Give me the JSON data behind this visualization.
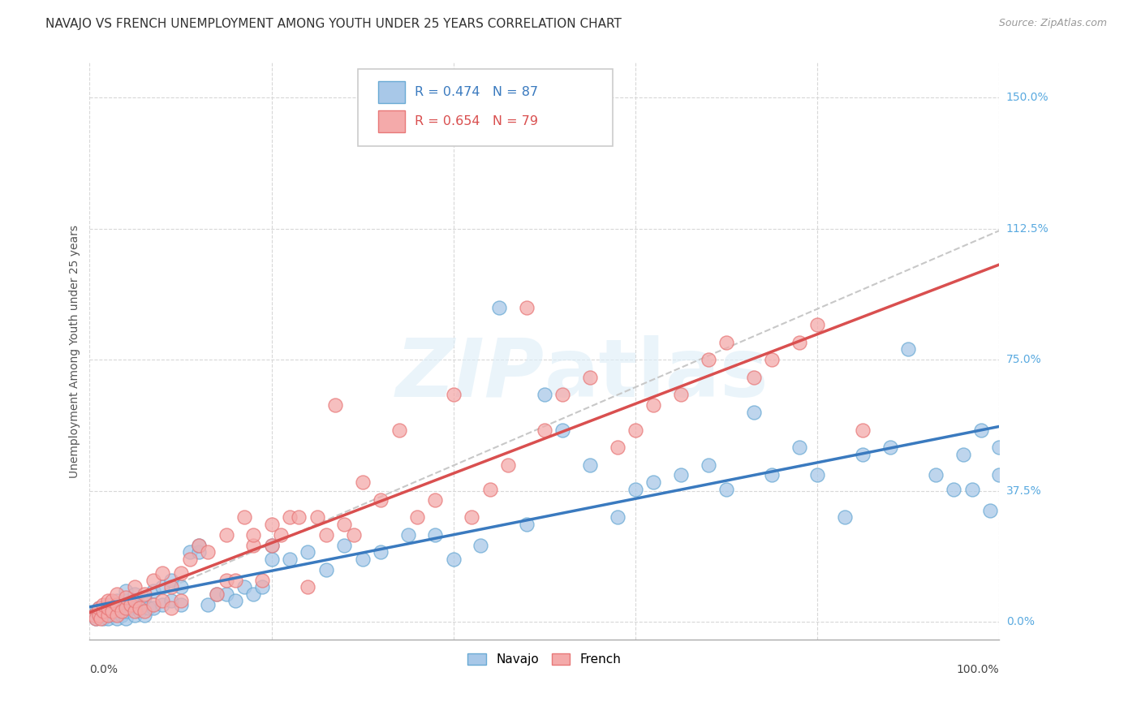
{
  "title": "NAVAJO VS FRENCH UNEMPLOYMENT AMONG YOUTH UNDER 25 YEARS CORRELATION CHART",
  "source": "Source: ZipAtlas.com",
  "ylabel": "Unemployment Among Youth under 25 years",
  "yticks": [
    0.0,
    0.375,
    0.75,
    1.125,
    1.5
  ],
  "ytick_labels": [
    "0.0%",
    "37.5%",
    "75.0%",
    "112.5%",
    "150.0%"
  ],
  "xlim": [
    0.0,
    1.0
  ],
  "ylim": [
    -0.05,
    1.6
  ],
  "navajo_color": "#a8c8e8",
  "navajo_edge_color": "#6aaad4",
  "navajo_line_color": "#3a7abf",
  "french_color": "#f4aaaa",
  "french_edge_color": "#e87878",
  "french_line_color": "#d94f4f",
  "dash_line_color": "#c8c8c8",
  "background_color": "#ffffff",
  "grid_color": "#d8d8d8",
  "tick_label_color": "#5aaae0",
  "navajo_x": [
    0.005,
    0.007,
    0.008,
    0.01,
    0.01,
    0.015,
    0.015,
    0.018,
    0.02,
    0.02,
    0.02,
    0.025,
    0.025,
    0.03,
    0.03,
    0.03,
    0.035,
    0.035,
    0.04,
    0.04,
    0.04,
    0.04,
    0.045,
    0.05,
    0.05,
    0.05,
    0.055,
    0.06,
    0.06,
    0.065,
    0.07,
    0.07,
    0.08,
    0.08,
    0.09,
    0.09,
    0.1,
    0.1,
    0.11,
    0.12,
    0.12,
    0.13,
    0.14,
    0.15,
    0.16,
    0.17,
    0.18,
    0.19,
    0.2,
    0.2,
    0.22,
    0.24,
    0.26,
    0.28,
    0.3,
    0.32,
    0.35,
    0.38,
    0.4,
    0.43,
    0.45,
    0.48,
    0.5,
    0.52,
    0.55,
    0.58,
    0.6,
    0.62,
    0.65,
    0.68,
    0.7,
    0.73,
    0.75,
    0.78,
    0.8,
    0.83,
    0.85,
    0.88,
    0.9,
    0.93,
    0.95,
    0.96,
    0.97,
    0.98,
    0.99,
    1.0,
    1.0
  ],
  "navajo_y": [
    0.02,
    0.01,
    0.03,
    0.02,
    0.04,
    0.01,
    0.03,
    0.02,
    0.01,
    0.03,
    0.05,
    0.02,
    0.04,
    0.01,
    0.03,
    0.06,
    0.02,
    0.05,
    0.01,
    0.03,
    0.06,
    0.09,
    0.04,
    0.02,
    0.05,
    0.08,
    0.03,
    0.02,
    0.07,
    0.04,
    0.04,
    0.09,
    0.05,
    0.1,
    0.06,
    0.12,
    0.05,
    0.1,
    0.2,
    0.2,
    0.22,
    0.05,
    0.08,
    0.08,
    0.06,
    0.1,
    0.08,
    0.1,
    0.18,
    0.22,
    0.18,
    0.2,
    0.15,
    0.22,
    0.18,
    0.2,
    0.25,
    0.25,
    0.18,
    0.22,
    0.9,
    0.28,
    0.65,
    0.55,
    0.45,
    0.3,
    0.38,
    0.4,
    0.42,
    0.45,
    0.38,
    0.6,
    0.42,
    0.5,
    0.42,
    0.3,
    0.48,
    0.5,
    0.78,
    0.42,
    0.38,
    0.48,
    0.38,
    0.55,
    0.32,
    0.5,
    0.42
  ],
  "french_x": [
    0.005,
    0.007,
    0.01,
    0.01,
    0.012,
    0.015,
    0.015,
    0.02,
    0.02,
    0.02,
    0.025,
    0.025,
    0.03,
    0.03,
    0.03,
    0.035,
    0.04,
    0.04,
    0.045,
    0.05,
    0.05,
    0.05,
    0.055,
    0.06,
    0.06,
    0.07,
    0.07,
    0.08,
    0.08,
    0.09,
    0.09,
    0.1,
    0.1,
    0.11,
    0.12,
    0.13,
    0.14,
    0.15,
    0.15,
    0.16,
    0.17,
    0.18,
    0.18,
    0.19,
    0.2,
    0.2,
    0.21,
    0.22,
    0.23,
    0.24,
    0.25,
    0.26,
    0.27,
    0.28,
    0.29,
    0.3,
    0.32,
    0.34,
    0.36,
    0.38,
    0.4,
    0.42,
    0.44,
    0.46,
    0.48,
    0.5,
    0.52,
    0.55,
    0.58,
    0.6,
    0.62,
    0.65,
    0.68,
    0.7,
    0.73,
    0.75,
    0.78,
    0.8,
    0.85
  ],
  "french_y": [
    0.02,
    0.01,
    0.02,
    0.04,
    0.01,
    0.03,
    0.05,
    0.02,
    0.04,
    0.06,
    0.03,
    0.06,
    0.02,
    0.05,
    0.08,
    0.03,
    0.04,
    0.07,
    0.05,
    0.03,
    0.06,
    0.1,
    0.04,
    0.03,
    0.08,
    0.05,
    0.12,
    0.06,
    0.14,
    0.04,
    0.1,
    0.06,
    0.14,
    0.18,
    0.22,
    0.2,
    0.08,
    0.25,
    0.12,
    0.12,
    0.3,
    0.22,
    0.25,
    0.12,
    0.28,
    0.22,
    0.25,
    0.3,
    0.3,
    0.1,
    0.3,
    0.25,
    0.62,
    0.28,
    0.25,
    0.4,
    0.35,
    0.55,
    0.3,
    0.35,
    0.65,
    0.3,
    0.38,
    0.45,
    0.9,
    0.55,
    0.65,
    0.7,
    0.5,
    0.55,
    0.62,
    0.65,
    0.75,
    0.8,
    0.7,
    0.75,
    0.8,
    0.85,
    0.55
  ]
}
